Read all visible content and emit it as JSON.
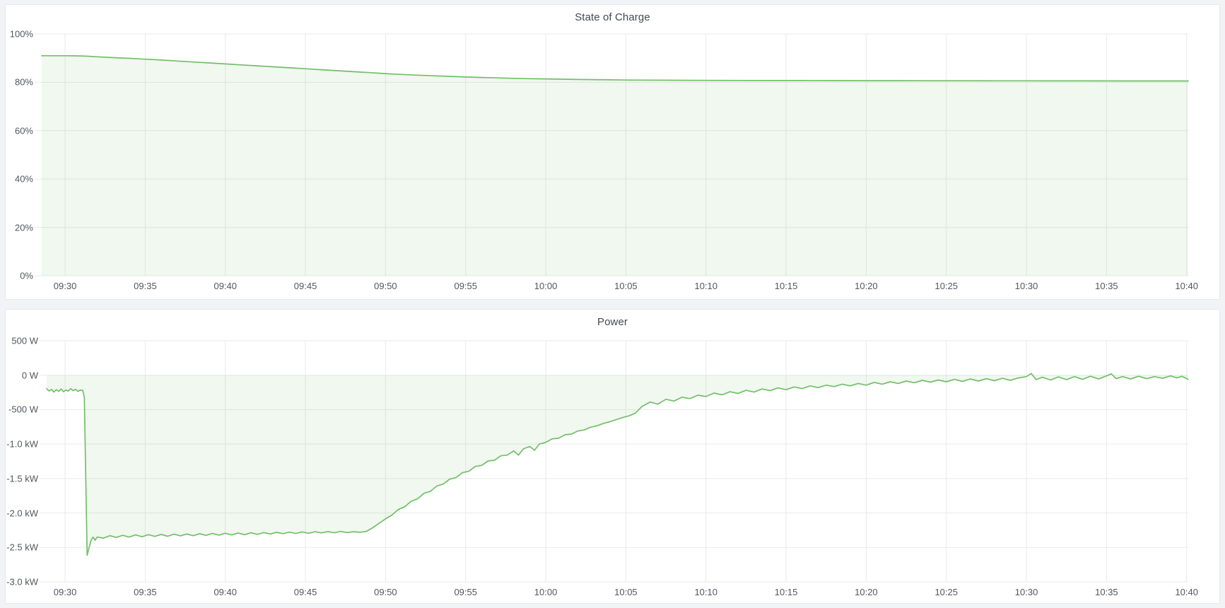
{
  "page": {
    "background_color": "#f2f3f7",
    "panel_background": "#ffffff",
    "panel_border_color": "#e6e7eb",
    "gridline_color": "#e9eaec",
    "tick_label_color": "#52565e",
    "title_color": "#44484f"
  },
  "chart_data": [
    {
      "type": "area",
      "title": "State of Charge",
      "legend": false,
      "grid": true,
      "line_color": "#73bf69",
      "fill_color": "rgba(115,191,105,0.11)",
      "x_unit": "minutes after 09:30",
      "xlim_minutes": [
        -1.46,
        70.1
      ],
      "ylim": [
        0,
        100
      ],
      "x_ticks": {
        "minutes": [
          0,
          5,
          10,
          15,
          20,
          25,
          30,
          35,
          40,
          45,
          50,
          55,
          60,
          65,
          70
        ],
        "labels": [
          "09:30",
          "09:35",
          "09:40",
          "09:45",
          "09:50",
          "09:55",
          "10:00",
          "10:05",
          "10:10",
          "10:15",
          "10:20",
          "10:25",
          "10:30",
          "10:35",
          "10:40"
        ]
      },
      "y_ticks": {
        "values": [
          100,
          80,
          60,
          40,
          20,
          0
        ],
        "labels": [
          "100%",
          "80%",
          "60%",
          "40%",
          "20%",
          "0%"
        ]
      },
      "series": [
        {
          "name": "State of Charge",
          "unit": "percent",
          "points": [
            [
              -1.46,
              91.0
            ],
            [
              0,
              91.0
            ],
            [
              0.7,
              90.95
            ],
            [
              1.2,
              90.85
            ],
            [
              2,
              90.55
            ],
            [
              3,
              90.2
            ],
            [
              4,
              89.9
            ],
            [
              5,
              89.55
            ],
            [
              6,
              89.2
            ],
            [
              7,
              88.8
            ],
            [
              8,
              88.4
            ],
            [
              9,
              88.0
            ],
            [
              10,
              87.6
            ],
            [
              11,
              87.2
            ],
            [
              12,
              86.8
            ],
            [
              13,
              86.4
            ],
            [
              14,
              86.0
            ],
            [
              15,
              85.6
            ],
            [
              16,
              85.2
            ],
            [
              17,
              84.8
            ],
            [
              18,
              84.4
            ],
            [
              19,
              84.0
            ],
            [
              20,
              83.6
            ],
            [
              21,
              83.25
            ],
            [
              22,
              82.95
            ],
            [
              23,
              82.7
            ],
            [
              24,
              82.45
            ],
            [
              25,
              82.2
            ],
            [
              26,
              82.0
            ],
            [
              27,
              81.8
            ],
            [
              28,
              81.65
            ],
            [
              29,
              81.5
            ],
            [
              30,
              81.4
            ],
            [
              31,
              81.28
            ],
            [
              32,
              81.18
            ],
            [
              33,
              81.1
            ],
            [
              34,
              81.02
            ],
            [
              35,
              80.95
            ],
            [
              36,
              80.9
            ],
            [
              37,
              80.87
            ],
            [
              38,
              80.84
            ],
            [
              39,
              80.82
            ],
            [
              40,
              80.8
            ],
            [
              42,
              80.77
            ],
            [
              44,
              80.74
            ],
            [
              46,
              80.72
            ],
            [
              48,
              80.7
            ],
            [
              50,
              80.68
            ],
            [
              52,
              80.66
            ],
            [
              54,
              80.65
            ],
            [
              56,
              80.63
            ],
            [
              58,
              80.62
            ],
            [
              60,
              80.6
            ],
            [
              62,
              80.59
            ],
            [
              64,
              80.58
            ],
            [
              66,
              80.57
            ],
            [
              68,
              80.56
            ],
            [
              70.1,
              80.55
            ]
          ]
        }
      ]
    },
    {
      "type": "area",
      "title": "Power",
      "legend": false,
      "grid": true,
      "line_color": "#73bf69",
      "fill_color": "rgba(115,191,105,0.11)",
      "x_unit": "minutes after 09:30",
      "xlim_minutes": [
        -1.15,
        70.1
      ],
      "ylim": [
        -3000,
        500
      ],
      "x_ticks": {
        "minutes": [
          0,
          5,
          10,
          15,
          20,
          25,
          30,
          35,
          40,
          45,
          50,
          55,
          60,
          65,
          70
        ],
        "labels": [
          "09:30",
          "09:35",
          "09:40",
          "09:45",
          "09:50",
          "09:55",
          "10:00",
          "10:05",
          "10:10",
          "10:15",
          "10:20",
          "10:25",
          "10:30",
          "10:35",
          "10:40"
        ]
      },
      "y_ticks": {
        "values": [
          500,
          0,
          -500,
          -1000,
          -1500,
          -2000,
          -2500,
          -3000
        ],
        "labels": [
          "500 W",
          "0 W",
          "-500 W",
          "-1.0 kW",
          "-1.5 kW",
          "-2.0 kW",
          "-2.5 kW",
          "-3.0 kW"
        ]
      },
      "series": [
        {
          "name": "Power",
          "unit": "watts",
          "points": [
            [
              -1.15,
              -195
            ],
            [
              -1.0,
              -230
            ],
            [
              -0.85,
              -205
            ],
            [
              -0.7,
              -245
            ],
            [
              -0.55,
              -210
            ],
            [
              -0.4,
              -235
            ],
            [
              -0.25,
              -200
            ],
            [
              -0.1,
              -240
            ],
            [
              0.05,
              -215
            ],
            [
              0.2,
              -230
            ],
            [
              0.35,
              -195
            ],
            [
              0.5,
              -225
            ],
            [
              0.65,
              -205
            ],
            [
              0.8,
              -235
            ],
            [
              0.95,
              -215
            ],
            [
              1.1,
              -220
            ],
            [
              1.2,
              -320
            ],
            [
              1.3,
              -1600
            ],
            [
              1.38,
              -2615
            ],
            [
              1.5,
              -2500
            ],
            [
              1.62,
              -2400
            ],
            [
              1.75,
              -2350
            ],
            [
              1.88,
              -2395
            ],
            [
              2.0,
              -2350
            ],
            [
              2.4,
              -2365
            ],
            [
              2.8,
              -2330
            ],
            [
              3.2,
              -2355
            ],
            [
              3.6,
              -2325
            ],
            [
              4.0,
              -2350
            ],
            [
              4.4,
              -2318
            ],
            [
              4.8,
              -2345
            ],
            [
              5.2,
              -2315
            ],
            [
              5.6,
              -2340
            ],
            [
              6.0,
              -2312
            ],
            [
              6.4,
              -2338
            ],
            [
              6.8,
              -2308
            ],
            [
              7.2,
              -2332
            ],
            [
              7.6,
              -2305
            ],
            [
              8.0,
              -2330
            ],
            [
              8.4,
              -2302
            ],
            [
              8.8,
              -2325
            ],
            [
              9.2,
              -2298
            ],
            [
              9.6,
              -2322
            ],
            [
              10.0,
              -2295
            ],
            [
              10.4,
              -2318
            ],
            [
              10.8,
              -2292
            ],
            [
              11.2,
              -2315
            ],
            [
              11.6,
              -2288
            ],
            [
              12.0,
              -2310
            ],
            [
              12.4,
              -2285
            ],
            [
              12.8,
              -2305
            ],
            [
              13.2,
              -2282
            ],
            [
              13.6,
              -2300
            ],
            [
              14.0,
              -2278
            ],
            [
              14.4,
              -2298
            ],
            [
              14.8,
              -2275
            ],
            [
              15.2,
              -2295
            ],
            [
              15.6,
              -2272
            ],
            [
              16.0,
              -2290
            ],
            [
              16.4,
              -2270
            ],
            [
              16.8,
              -2288
            ],
            [
              17.2,
              -2268
            ],
            [
              17.6,
              -2285
            ],
            [
              18.0,
              -2272
            ],
            [
              18.4,
              -2280
            ],
            [
              18.8,
              -2268
            ],
            [
              19.2,
              -2215
            ],
            [
              19.6,
              -2150
            ],
            [
              20.0,
              -2085
            ],
            [
              20.4,
              -2030
            ],
            [
              20.8,
              -1950
            ],
            [
              21.2,
              -1910
            ],
            [
              21.6,
              -1830
            ],
            [
              22.0,
              -1795
            ],
            [
              22.4,
              -1715
            ],
            [
              22.8,
              -1685
            ],
            [
              23.2,
              -1610
            ],
            [
              23.6,
              -1580
            ],
            [
              24.0,
              -1510
            ],
            [
              24.4,
              -1485
            ],
            [
              24.8,
              -1415
            ],
            [
              25.2,
              -1395
            ],
            [
              25.6,
              -1325
            ],
            [
              26.0,
              -1310
            ],
            [
              26.4,
              -1245
            ],
            [
              26.8,
              -1235
            ],
            [
              27.2,
              -1170
            ],
            [
              27.6,
              -1160
            ],
            [
              28.0,
              -1100
            ],
            [
              28.3,
              -1160
            ],
            [
              28.6,
              -1070
            ],
            [
              29.0,
              -1035
            ],
            [
              29.3,
              -1090
            ],
            [
              29.6,
              -1000
            ],
            [
              30.0,
              -975
            ],
            [
              30.4,
              -925
            ],
            [
              30.8,
              -915
            ],
            [
              31.2,
              -865
            ],
            [
              31.6,
              -855
            ],
            [
              32.0,
              -810
            ],
            [
              32.4,
              -795
            ],
            [
              32.8,
              -755
            ],
            [
              33.2,
              -735
            ],
            [
              33.6,
              -700
            ],
            [
              34.0,
              -675
            ],
            [
              34.4,
              -645
            ],
            [
              34.8,
              -615
            ],
            [
              35.2,
              -590
            ],
            [
              35.6,
              -550
            ],
            [
              36.0,
              -455
            ],
            [
              36.5,
              -390
            ],
            [
              37.0,
              -420
            ],
            [
              37.5,
              -350
            ],
            [
              38.0,
              -375
            ],
            [
              38.5,
              -320
            ],
            [
              39.0,
              -340
            ],
            [
              39.5,
              -290
            ],
            [
              40.0,
              -310
            ],
            [
              40.5,
              -260
            ],
            [
              41.0,
              -285
            ],
            [
              41.5,
              -240
            ],
            [
              42.0,
              -265
            ],
            [
              42.5,
              -220
            ],
            [
              43.0,
              -245
            ],
            [
              43.5,
              -200
            ],
            [
              44.0,
              -225
            ],
            [
              44.5,
              -185
            ],
            [
              45.0,
              -210
            ],
            [
              45.5,
              -170
            ],
            [
              46.0,
              -195
            ],
            [
              46.5,
              -155
            ],
            [
              47.0,
              -180
            ],
            [
              47.5,
              -145
            ],
            [
              48.0,
              -165
            ],
            [
              48.5,
              -130
            ],
            [
              49.0,
              -155
            ],
            [
              49.5,
              -120
            ],
            [
              50.0,
              -145
            ],
            [
              50.5,
              -105
            ],
            [
              51.0,
              -130
            ],
            [
              51.5,
              -95
            ],
            [
              52.0,
              -120
            ],
            [
              52.5,
              -85
            ],
            [
              53.0,
              -110
            ],
            [
              53.5,
              -75
            ],
            [
              54.0,
              -100
            ],
            [
              54.5,
              -70
            ],
            [
              55.0,
              -95
            ],
            [
              55.5,
              -60
            ],
            [
              56.0,
              -90
            ],
            [
              56.5,
              -55
            ],
            [
              57.0,
              -85
            ],
            [
              57.5,
              -50
            ],
            [
              58.0,
              -80
            ],
            [
              58.5,
              -45
            ],
            [
              59.0,
              -75
            ],
            [
              59.5,
              -40
            ],
            [
              60.0,
              -20
            ],
            [
              60.3,
              25
            ],
            [
              60.6,
              -65
            ],
            [
              61.0,
              -30
            ],
            [
              61.5,
              -70
            ],
            [
              62.0,
              -25
            ],
            [
              62.5,
              -65
            ],
            [
              63.0,
              -20
            ],
            [
              63.5,
              -60
            ],
            [
              64.0,
              -15
            ],
            [
              64.5,
              -55
            ],
            [
              65.0,
              -10
            ],
            [
              65.3,
              20
            ],
            [
              65.6,
              -50
            ],
            [
              66.0,
              -20
            ],
            [
              66.5,
              -55
            ],
            [
              67.0,
              -15
            ],
            [
              67.5,
              -50
            ],
            [
              68.0,
              -20
            ],
            [
              68.5,
              -45
            ],
            [
              69.0,
              -10
            ],
            [
              69.4,
              -40
            ],
            [
              69.7,
              -15
            ],
            [
              70.1,
              -60
            ]
          ]
        }
      ]
    }
  ]
}
